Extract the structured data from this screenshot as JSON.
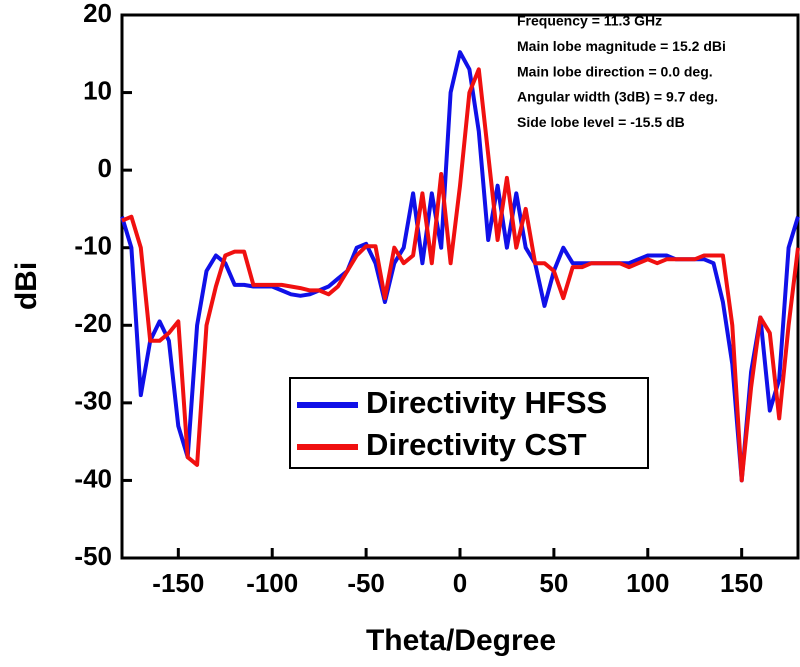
{
  "chart_data": {
    "type": "line",
    "xlabel": "Theta/Degree",
    "ylabel": "dBi",
    "annotations": [
      "Frequency = 11.3 GHz",
      "Main lobe magnitude = 15.2 dBi",
      "Main lobe direction = 0.0 deg.",
      "Angular width (3dB) = 9.7 deg.",
      "Side lobe level = -15.5 dB"
    ],
    "x": [
      -180,
      -175,
      -170,
      -165,
      -160,
      -155,
      -150,
      -145,
      -140,
      -135,
      -130,
      -125,
      -120,
      -115,
      -110,
      -105,
      -100,
      -95,
      -90,
      -85,
      -80,
      -75,
      -70,
      -65,
      -60,
      -55,
      -50,
      -45,
      -40,
      -35,
      -30,
      -25,
      -20,
      -15,
      -10,
      -5,
      0,
      5,
      10,
      15,
      20,
      25,
      30,
      35,
      40,
      45,
      50,
      55,
      60,
      65,
      70,
      75,
      80,
      85,
      90,
      95,
      100,
      105,
      110,
      115,
      120,
      125,
      130,
      135,
      140,
      145,
      150,
      155,
      160,
      165,
      170,
      175,
      180
    ],
    "series": [
      {
        "name": "Directivity HFSS",
        "color": "#1010e8",
        "values": [
          -6,
          -10,
          -29,
          -22,
          -19.5,
          -22,
          -33,
          -37,
          -20,
          -13,
          -11,
          -12,
          -14.8,
          -14.8,
          -15,
          -15,
          -15,
          -15.5,
          -16,
          -16.2,
          -16,
          -15.5,
          -15,
          -14,
          -13,
          -10,
          -9.5,
          -12,
          -17,
          -12,
          -10,
          -3,
          -12,
          -3,
          -10,
          10,
          15.2,
          13,
          5,
          -9,
          -2,
          -10,
          -3,
          -10,
          -12,
          -17.5,
          -13,
          -10,
          -12,
          -12,
          -12,
          -12,
          -12,
          -12,
          -12,
          -11.5,
          -11,
          -11,
          -11,
          -11.5,
          -11.5,
          -11.5,
          -11.5,
          -12,
          -17,
          -25,
          -40,
          -26,
          -19,
          -31,
          -27,
          -10,
          -6
        ]
      },
      {
        "name": "Directivity CST",
        "color": "#f01010",
        "values": [
          -6.5,
          -6,
          -10,
          -22,
          -22,
          -21,
          -19.5,
          -37,
          -38,
          -20,
          -15,
          -11,
          -10.5,
          -10.5,
          -14.8,
          -14.8,
          -14.8,
          -14.8,
          -15,
          -15.2,
          -15.5,
          -15.5,
          -16,
          -15,
          -13,
          -11,
          -9.8,
          -9.8,
          -16.5,
          -10,
          -12,
          -11,
          -3,
          -12,
          -0.5,
          -12,
          -2,
          10,
          13,
          2,
          -9,
          -1,
          -10,
          -5,
          -12,
          -12,
          -13,
          -16.5,
          -12.5,
          -12.5,
          -12,
          -12,
          -12,
          -12,
          -12.5,
          -12,
          -11.5,
          -12,
          -11.5,
          -11.5,
          -11.5,
          -11.5,
          -11,
          -11,
          -11,
          -20,
          -40,
          -28,
          -19,
          -21,
          -32,
          -20,
          -10
        ]
      }
    ],
    "xlim": [
      -180,
      180
    ],
    "xticks": [
      -150,
      -100,
      -50,
      0,
      50,
      100,
      150
    ],
    "ylim": [
      -50,
      20
    ],
    "yticks": [
      -50,
      -40,
      -30,
      -20,
      -10,
      0,
      10,
      20
    ]
  }
}
